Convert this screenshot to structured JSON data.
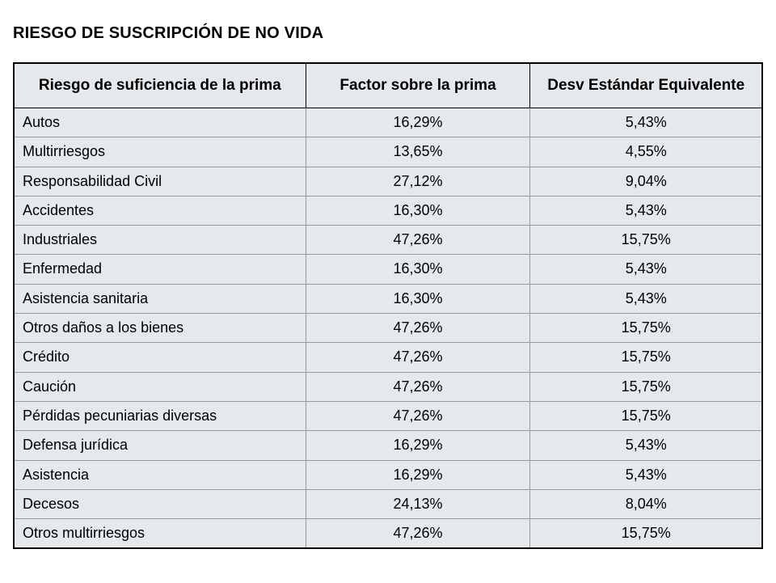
{
  "title": "RIESGO DE SUSCRIPCIÓN DE NO VIDA",
  "table": {
    "columns": [
      {
        "label": "Riesgo de suficiencia de la prima",
        "width": "39%",
        "align": "left"
      },
      {
        "label": "Factor sobre la prima",
        "width": "30%",
        "align": "center"
      },
      {
        "label": "Desv Estándar Equivalente",
        "width": "31%",
        "align": "center"
      }
    ],
    "rows": [
      {
        "category": "Autos",
        "factor": "16,29%",
        "desv": "5,43%"
      },
      {
        "category": "Multirriesgos",
        "factor": "13,65%",
        "desv": "4,55%"
      },
      {
        "category": "Responsabilidad Civil",
        "factor": "27,12%",
        "desv": "9,04%"
      },
      {
        "category": "Accidentes",
        "factor": "16,30%",
        "desv": "5,43%"
      },
      {
        "category": "Industriales",
        "factor": "47,26%",
        "desv": "15,75%"
      },
      {
        "category": "Enfermedad",
        "factor": "16,30%",
        "desv": "5,43%"
      },
      {
        "category": "Asistencia sanitaria",
        "factor": "16,30%",
        "desv": "5,43%"
      },
      {
        "category": "Otros daños a los bienes",
        "factor": "47,26%",
        "desv": "15,75%"
      },
      {
        "category": "Crédito",
        "factor": "47,26%",
        "desv": "15,75%"
      },
      {
        "category": "Caución",
        "factor": "47,26%",
        "desv": "15,75%"
      },
      {
        "category": "Pérdidas pecuniarias diversas",
        "factor": "47,26%",
        "desv": "15,75%"
      },
      {
        "category": "Defensa jurídica",
        "factor": "16,29%",
        "desv": "5,43%"
      },
      {
        "category": "Asistencia",
        "factor": "16,29%",
        "desv": "5,43%"
      },
      {
        "category": "Decesos",
        "factor": "24,13%",
        "desv": "8,04%"
      },
      {
        "category": "Otros multirriesgos",
        "factor": "47,26%",
        "desv": "15,75%"
      }
    ],
    "header_bg_color": "#e6e9ec",
    "row_bg_color": "#e6e9ec",
    "outer_border_color": "#000000",
    "inner_border_color": "#9a9a9a",
    "header_fontsize": 19,
    "body_fontsize": 18,
    "font_family": "Arial Narrow"
  }
}
